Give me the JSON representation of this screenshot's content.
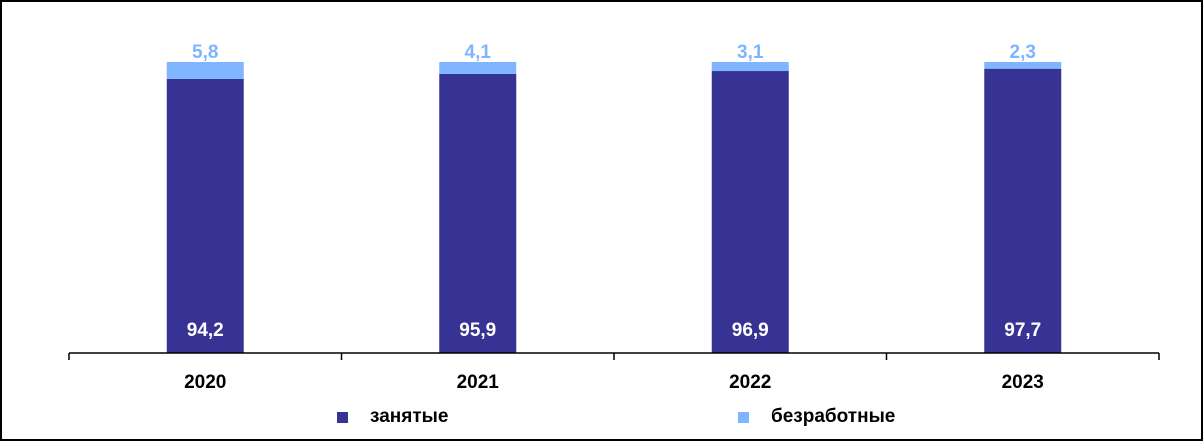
{
  "chart_data": {
    "type": "bar",
    "stacked": true,
    "categories": [
      "2020",
      "2021",
      "2022",
      "2023"
    ],
    "series": [
      {
        "name": "занятые",
        "values": [
          94.2,
          95.9,
          96.9,
          97.7
        ],
        "labels": [
          "94,2",
          "95,9",
          "96,9",
          "97,7"
        ],
        "color": "#363394",
        "label_color": "#ffffff"
      },
      {
        "name": "безработные",
        "values": [
          5.8,
          4.1,
          3.1,
          2.3
        ],
        "labels": [
          "5,8",
          "4,1",
          "3,1",
          "2,3"
        ],
        "color": "#7fb5ff",
        "label_color": "#7fb5ff"
      }
    ],
    "ylim": [
      0,
      100
    ],
    "grid": false,
    "legend_position": "bottom"
  }
}
